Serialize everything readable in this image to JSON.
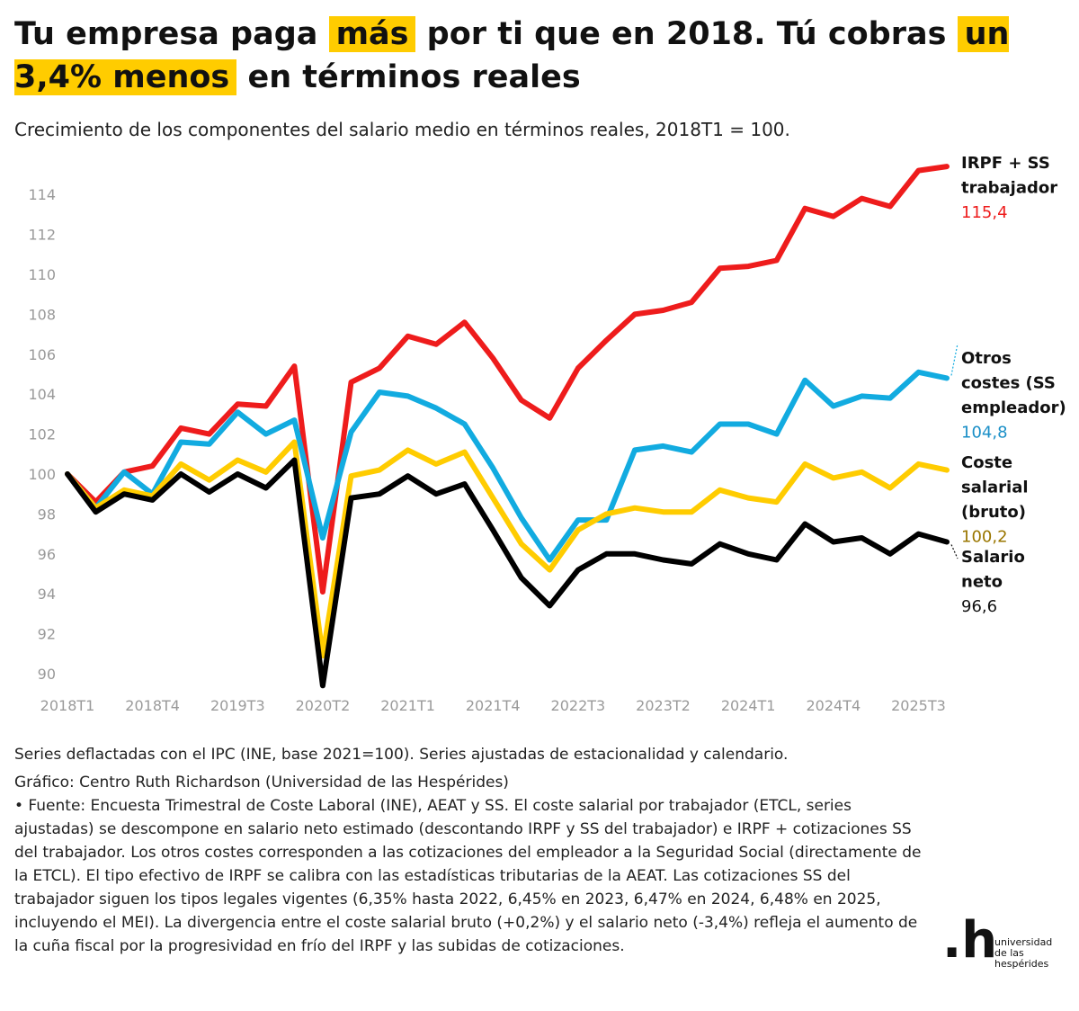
{
  "title": {
    "p1": "Tu empresa paga",
    "h1": "más",
    "p2": "por ti que en 2018. Tú cobras",
    "h2": "un 3,4% menos",
    "p3": "en términos reales"
  },
  "subtitle": "Crecimiento de los componentes del salario medio en términos reales, 2018T1 = 100.",
  "chart_data": {
    "type": "line",
    "title": "Tu empresa paga más por ti que en 2018. Tú cobras un 3,4% menos en términos reales",
    "subtitle": "Crecimiento de los componentes del salario medio en términos reales, 2018T1 = 100.",
    "xlabel": "",
    "ylabel": "",
    "ylim": [
      89,
      115.5
    ],
    "yticks": [
      90,
      92,
      94,
      96,
      98,
      100,
      102,
      104,
      106,
      108,
      110,
      112,
      114
    ],
    "grid": false,
    "legend": "direct-labels-right",
    "x": [
      "2018T1",
      "2018T2",
      "2018T3",
      "2018T4",
      "2019T1",
      "2019T2",
      "2019T3",
      "2019T4",
      "2020T1",
      "2020T2",
      "2020T3",
      "2020T4",
      "2021T1",
      "2021T2",
      "2021T3",
      "2021T4",
      "2022T1",
      "2022T2",
      "2022T3",
      "2022T4",
      "2023T1",
      "2023T2",
      "2023T3",
      "2023T4",
      "2024T1",
      "2024T2",
      "2024T3",
      "2024T4",
      "2025T1",
      "2025T2",
      "2025T3",
      "2025T4"
    ],
    "xtick_labels": [
      "2018T1",
      "2018T4",
      "2019T3",
      "2020T2",
      "2021T1",
      "2021T4",
      "2022T3",
      "2023T2",
      "2024T1",
      "2024T4",
      "2025T3"
    ],
    "series": [
      {
        "key": "irpf",
        "name": "IRPF + SS trabajador",
        "name_lines": [
          "IRPF + SS",
          "trabajador"
        ],
        "end_label": "115,4",
        "color": "#ee1c1c",
        "value_color": "#ee1c1c",
        "values": [
          100.0,
          98.6,
          100.1,
          100.4,
          102.3,
          102.0,
          103.5,
          103.4,
          105.4,
          94.1,
          104.6,
          105.3,
          106.9,
          106.5,
          107.6,
          105.8,
          103.7,
          102.8,
          105.3,
          106.7,
          108.0,
          108.2,
          108.6,
          110.3,
          110.4,
          110.7,
          113.3,
          112.9,
          113.8,
          113.4,
          115.2,
          115.4
        ]
      },
      {
        "key": "otros",
        "name": "Otros costes (SS empleador)",
        "name_lines": [
          "Otros",
          "costes (SS",
          "empleador)"
        ],
        "end_label": "104,8",
        "color": "#12abe0",
        "value_color": "#1a8fc7",
        "values": [
          100.0,
          98.3,
          100.1,
          99.0,
          101.6,
          101.5,
          103.1,
          102.0,
          102.7,
          96.8,
          102.1,
          104.1,
          103.9,
          103.3,
          102.5,
          100.3,
          97.8,
          95.7,
          97.7,
          97.7,
          101.2,
          101.4,
          101.1,
          102.5,
          102.5,
          102.0,
          104.7,
          103.4,
          103.9,
          103.8,
          105.1,
          104.8
        ]
      },
      {
        "key": "coste",
        "name": "Coste salarial (bruto)",
        "name_lines": [
          "Coste",
          "salarial",
          "(bruto)"
        ],
        "end_label": "100,2",
        "color": "#ffcc00",
        "value_color": "#9a7600",
        "values": [
          100.0,
          98.3,
          99.2,
          98.9,
          100.5,
          99.7,
          100.7,
          100.1,
          101.6,
          90.9,
          99.9,
          100.2,
          101.2,
          100.5,
          101.1,
          98.8,
          96.5,
          95.2,
          97.2,
          98.0,
          98.3,
          98.1,
          98.1,
          99.2,
          98.8,
          98.6,
          100.5,
          99.8,
          100.1,
          99.3,
          100.5,
          100.2
        ]
      },
      {
        "key": "neto",
        "name": "Salario neto",
        "name_lines": [
          "Salario",
          "neto"
        ],
        "end_label": "96,6",
        "color": "#000000",
        "value_color": "#111111",
        "values": [
          100.0,
          98.1,
          99.0,
          98.7,
          100.0,
          99.1,
          100.0,
          99.3,
          100.7,
          89.4,
          98.8,
          99.0,
          99.9,
          99.0,
          99.5,
          97.2,
          94.8,
          93.4,
          95.2,
          96.0,
          96.0,
          95.7,
          95.5,
          96.5,
          96.0,
          95.7,
          97.5,
          96.6,
          96.8,
          96.0,
          97.0,
          96.6
        ]
      }
    ]
  },
  "footer": {
    "note": "Series deflactadas con el IPC (INE, base 2021=100). Series ajustadas de estacionalidad y calendario.",
    "credit": "Gráfico: Centro Ruth Richardson (Universidad de las Hespérides)",
    "source": " • Fuente: Encuesta Trimestral de Coste Laboral (INE), AEAT y SS. El coste salarial por trabajador (ETCL, series ajustadas) se descompone en salario neto estimado (descontando IRPF y SS del trabajador) e IRPF + cotizaciones SS del trabajador. Los otros costes corresponden a las cotizaciones del empleador a la Seguridad Social (directamente de la ETCL). El tipo efectivo de IRPF se calibra con las estadísticas tributarias de la AEAT. Las cotizaciones SS del trabajador siguen los tipos legales vigentes (6,35% hasta 2022, 6,45% en 2023, 6,47% en 2024, 6,48% en 2025, incluyendo el MEI). La divergencia entre el coste salarial bruto (+0,2%) y el salario neto (-3,4%) refleja el aumento de la cuña fiscal por la progresividad en frío del IRPF y las subidas de cotizaciones."
  },
  "logo": {
    "mark": ".h",
    "lines": [
      "universidad",
      "de las",
      "hespérides"
    ]
  },
  "colors": {
    "highlight": "#ffcc00",
    "tick": "#9a9a9a"
  }
}
